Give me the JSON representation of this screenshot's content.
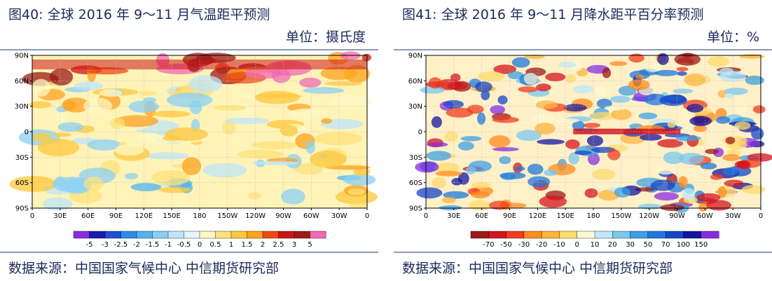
{
  "panels": [
    {
      "title": "图40: 全球 2016 年 9～11 月气温距平预测",
      "unit": "单位：摄氏度",
      "source": "数据来源：中国国家气候中心  中信期货研究部"
    },
    {
      "title": "图41: 全球 2016 年 9～11 月降水距平百分率预测",
      "unit": "单位：%",
      "source": "数据来源：中国国家气候中心  中信期货研究部"
    }
  ],
  "chart_data": [
    {
      "type": "heatmap",
      "title": "全球 2016 年 9～11 月气温距平预测",
      "unit": "摄氏度",
      "x_ticks": [
        "0",
        "30E",
        "60E",
        "90E",
        "120E",
        "150E",
        "180",
        "150W",
        "120W",
        "90W",
        "60W",
        "30W",
        "0"
      ],
      "y_ticks": [
        "90N",
        "60N",
        "30N",
        "0",
        "30S",
        "60S",
        "90S"
      ],
      "colorbar": {
        "labels": [
          "-5",
          "-3",
          "-2.5",
          "-2",
          "-1.5",
          "-1",
          "-0.5",
          "0",
          "0.5",
          "1",
          "1.5",
          "2",
          "2.5",
          "3",
          "5"
        ],
        "colors": [
          "#8a2be2",
          "#1a1ab4",
          "#1e4fd0",
          "#2a8ce8",
          "#4fb3f0",
          "#8ad0f5",
          "#bfe4f8",
          "#e6f4fb",
          "#fff8c4",
          "#ffe27a",
          "#ffc83c",
          "#ffa21e",
          "#ee4a14",
          "#cc1414",
          "#9c1a1a",
          "#f06ab4"
        ]
      }
    },
    {
      "type": "heatmap",
      "title": "全球 2016 年 9～11 月降水距平百分率预测",
      "unit": "%",
      "x_ticks": [
        "0",
        "30E",
        "60E",
        "90E",
        "120E",
        "150E",
        "180",
        "150W",
        "120W",
        "90W",
        "60W",
        "30W",
        "0"
      ],
      "y_ticks": [
        "90N",
        "60N",
        "30N",
        "0",
        "30S",
        "60S",
        "90S"
      ],
      "colorbar": {
        "labels": [
          "-70",
          "-50",
          "-30",
          "-20",
          "-10",
          "0",
          "10",
          "20",
          "30",
          "50",
          "70",
          "100",
          "150"
        ],
        "colors": [
          "#9c1a1a",
          "#d4141e",
          "#f03c1e",
          "#ff8c1e",
          "#ffb43c",
          "#ffdc6e",
          "#fff8d2",
          "#bfe8fa",
          "#78c8f0",
          "#3ca0e6",
          "#1e78dc",
          "#1446c8",
          "#1414a0",
          "#8a2be2"
        ]
      }
    }
  ]
}
